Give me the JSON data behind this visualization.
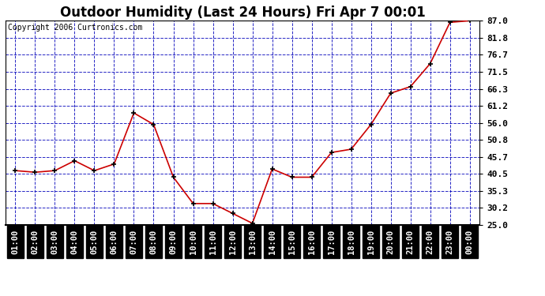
{
  "title": "Outdoor Humidity (Last 24 Hours) Fri Apr 7 00:01",
  "copyright": "Copyright 2006 Curtronics.com",
  "x_labels": [
    "01:00",
    "02:00",
    "03:00",
    "04:00",
    "05:00",
    "06:00",
    "07:00",
    "08:00",
    "09:00",
    "10:00",
    "11:00",
    "12:00",
    "13:00",
    "14:00",
    "15:00",
    "16:00",
    "17:00",
    "18:00",
    "19:00",
    "20:00",
    "21:00",
    "22:00",
    "23:00",
    "00:00"
  ],
  "y_values": [
    41.5,
    41.0,
    41.5,
    44.5,
    41.5,
    43.5,
    59.0,
    55.5,
    39.5,
    31.5,
    31.5,
    28.5,
    25.5,
    42.0,
    39.5,
    39.5,
    47.0,
    48.0,
    55.5,
    65.0,
    67.0,
    74.0,
    86.5,
    87.0
  ],
  "ylim_min": 25.0,
  "ylim_max": 87.0,
  "y_ticks": [
    25.0,
    30.2,
    35.3,
    40.5,
    45.7,
    50.8,
    56.0,
    61.2,
    66.3,
    71.5,
    76.7,
    81.8,
    87.0
  ],
  "line_color": "#cc0000",
  "marker_color": "#000000",
  "plot_bg_color": "#ffffff",
  "grid_color": "#0000bb",
  "title_fontsize": 12,
  "copyright_fontsize": 7,
  "tick_fontsize": 7.5,
  "ytick_fontsize": 8,
  "title_color": "#000000",
  "outer_bg_color": "#ffffff",
  "tick_label_bg": "#000000",
  "tick_label_fg": "#ffffff"
}
